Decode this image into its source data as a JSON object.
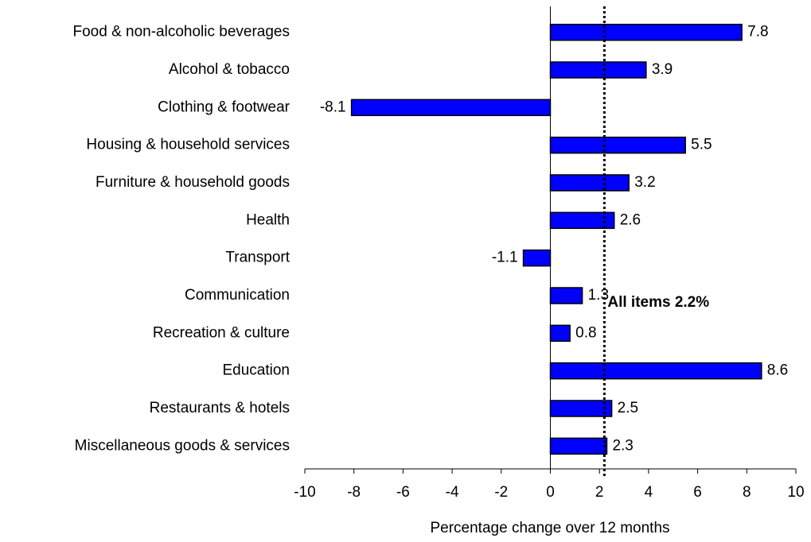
{
  "chart_data": {
    "type": "bar",
    "orientation": "horizontal",
    "x_label": "Percentage change over 12 months",
    "categories": [
      "Food & non-alcoholic beverages",
      "Alcohol & tobacco",
      "Clothing & footwear",
      "Housing & household services",
      "Furniture & household goods",
      "Health",
      "Transport",
      "Communication",
      "Recreation & culture",
      "Education",
      "Restaurants & hotels",
      "Miscellaneous goods & services"
    ],
    "values": [
      7.8,
      3.9,
      -8.1,
      5.5,
      3.2,
      2.6,
      -1.1,
      1.3,
      0.8,
      8.6,
      2.5,
      2.3
    ],
    "color": "#0000ff",
    "xlim": [
      -10,
      10
    ],
    "xticks": [
      -10,
      -8,
      -6,
      -4,
      -2,
      0,
      2,
      4,
      6,
      8,
      10
    ],
    "reference": {
      "value": 2.2,
      "label": "All items 2.2%"
    }
  }
}
